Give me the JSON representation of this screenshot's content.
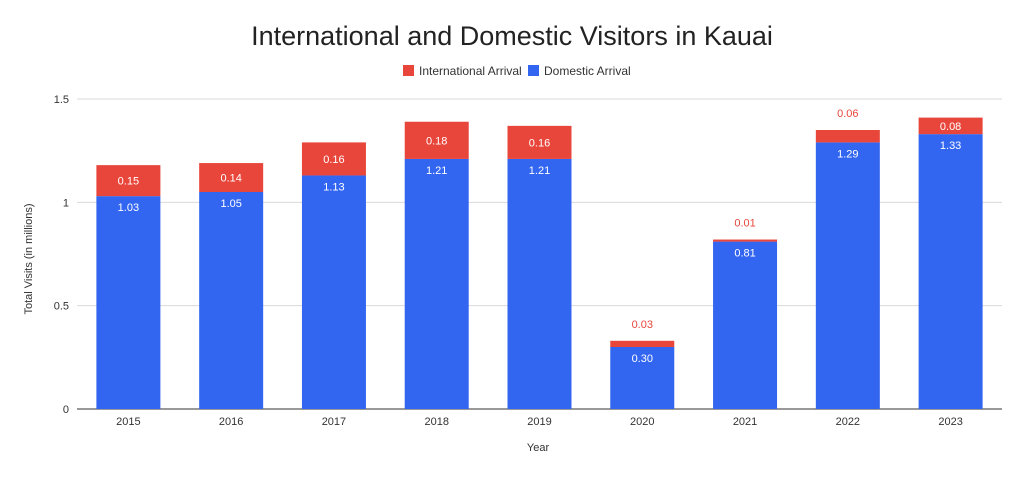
{
  "chart_data": {
    "type": "bar",
    "stacked": true,
    "title": "International and Domestic Visitors in Kauai",
    "xlabel": "Year",
    "ylabel": "Total Visits (in millions)",
    "categories": [
      "2015",
      "2016",
      "2017",
      "2018",
      "2019",
      "2020",
      "2021",
      "2022",
      "2023"
    ],
    "yticks": [
      "0",
      "0.5",
      "1",
      "1.5"
    ],
    "ylim": [
      0,
      1.5
    ],
    "grid": true,
    "legend_position": "top",
    "series": [
      {
        "name": "Domestic Arrival",
        "color": "#3366f0",
        "values": [
          1.03,
          1.05,
          1.13,
          1.21,
          1.21,
          0.3,
          0.81,
          1.29,
          1.33
        ],
        "labels": [
          "1.03",
          "1.05",
          "1.13",
          "1.21",
          "1.21",
          "0.30",
          "0.81",
          "1.29",
          "1.33"
        ]
      },
      {
        "name": "International Arrival",
        "color": "#e8463b",
        "values": [
          0.15,
          0.14,
          0.16,
          0.18,
          0.16,
          0.03,
          0.01,
          0.06,
          0.08
        ],
        "labels": [
          "0.15",
          "0.14",
          "0.16",
          "0.18",
          "0.16",
          "0.03",
          "0.01",
          "0.06",
          "0.08"
        ]
      }
    ],
    "legend_order": [
      "International Arrival",
      "Domestic Arrival"
    ]
  }
}
